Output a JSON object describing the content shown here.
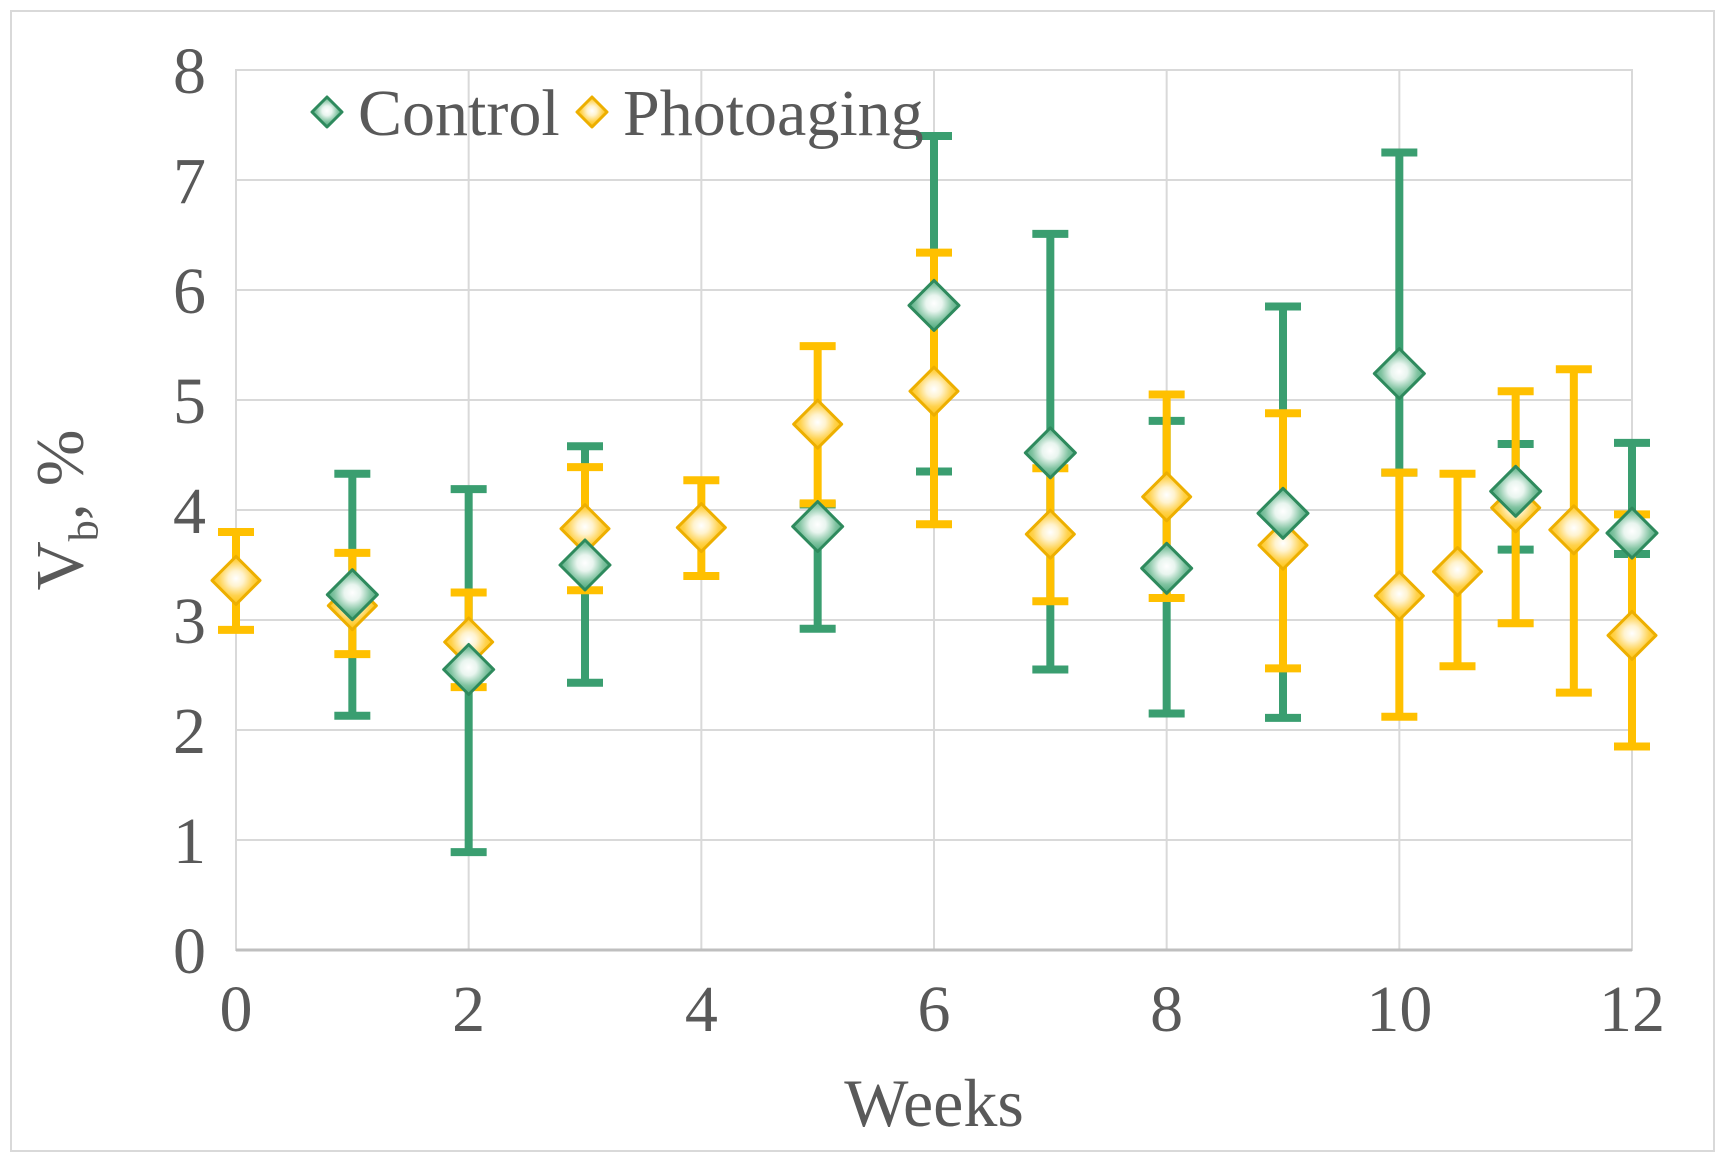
{
  "chart_data": {
    "type": "scatter",
    "title": "",
    "xlabel": "Weeks",
    "ylabel": {
      "main": "V",
      "sub": "b",
      "rest": ", %"
    },
    "xlim": [
      0,
      12
    ],
    "ylim": [
      0,
      8
    ],
    "xticks": [
      0,
      2,
      4,
      6,
      8,
      10,
      12
    ],
    "yticks": [
      0,
      1,
      2,
      3,
      4,
      5,
      6,
      7,
      8
    ],
    "grid": true,
    "legend_position": "top-left-inside",
    "colors": {
      "control_bar": "#3A9E70",
      "control_fill": "#3A9E70",
      "control_border": "#2E8A5D",
      "photoaging_bar": "#FFC000",
      "photoaging_fill": "#FEC000",
      "photoaging_border": "#EDAF00",
      "grid": "#D9D9D9",
      "axis": "#BFBFBF",
      "text": "#595959"
    },
    "series": [
      {
        "name": "Control",
        "marker": "diamond",
        "points": [
          {
            "x": 1,
            "y": 3.23,
            "lo": 2.13,
            "hi": 4.33
          },
          {
            "x": 2,
            "y": 2.55,
            "lo": 0.89,
            "hi": 4.19
          },
          {
            "x": 3,
            "y": 3.5,
            "lo": 2.43,
            "hi": 4.58
          },
          {
            "x": 5,
            "y": 3.85,
            "lo": 2.92,
            "hi": 4.05
          },
          {
            "x": 6,
            "y": 5.86,
            "lo": 4.35,
            "hi": 7.4
          },
          {
            "x": 7,
            "y": 4.52,
            "lo": 2.55,
            "hi": 6.51
          },
          {
            "x": 8,
            "y": 3.47,
            "lo": 2.15,
            "hi": 4.81
          },
          {
            "x": 9,
            "y": 3.97,
            "lo": 2.11,
            "hi": 5.85
          },
          {
            "x": 10,
            "y": 5.24,
            "lo": 4.34,
            "hi": 7.25
          },
          {
            "x": 11,
            "y": 4.17,
            "lo": 3.64,
            "hi": 4.6
          },
          {
            "x": 12,
            "y": 3.79,
            "lo": 3.6,
            "hi": 4.61
          }
        ]
      },
      {
        "name": "Photoaging",
        "marker": "diamond",
        "points": [
          {
            "x": 0,
            "y": 3.36,
            "lo": 2.91,
            "hi": 3.8
          },
          {
            "x": 1,
            "y": 3.13,
            "lo": 2.69,
            "hi": 3.61
          },
          {
            "x": 2,
            "y": 2.8,
            "lo": 2.39,
            "hi": 3.25
          },
          {
            "x": 3,
            "y": 3.83,
            "lo": 3.27,
            "hi": 4.39
          },
          {
            "x": 4,
            "y": 3.84,
            "lo": 3.4,
            "hi": 4.27
          },
          {
            "x": 5,
            "y": 4.78,
            "lo": 4.06,
            "hi": 5.49
          },
          {
            "x": 6,
            "y": 5.08,
            "lo": 3.87,
            "hi": 6.34
          },
          {
            "x": 7,
            "y": 3.78,
            "lo": 3.17,
            "hi": 4.38
          },
          {
            "x": 8,
            "y": 4.12,
            "lo": 3.2,
            "hi": 5.05
          },
          {
            "x": 9,
            "y": 3.68,
            "lo": 2.56,
            "hi": 4.88
          },
          {
            "x": 10,
            "y": 3.22,
            "lo": 2.12,
            "hi": 4.34
          },
          {
            "x": 10.5,
            "y": 3.44,
            "lo": 2.58,
            "hi": 4.33
          },
          {
            "x": 11,
            "y": 4.02,
            "lo": 2.97,
            "hi": 5.08
          },
          {
            "x": 11.5,
            "y": 3.82,
            "lo": 2.34,
            "hi": 5.28
          },
          {
            "x": 12,
            "y": 2.86,
            "lo": 1.85,
            "hi": 3.96
          }
        ]
      }
    ],
    "legend": [
      "Control",
      "Photoaging"
    ]
  }
}
